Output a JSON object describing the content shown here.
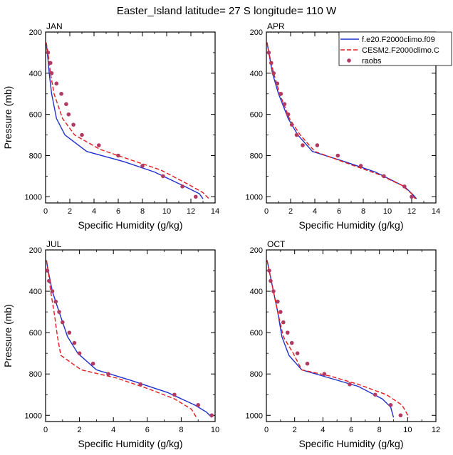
{
  "figure": {
    "title": "Easter_Island  latitude= 27 S longitude= 110 W"
  },
  "legend": {
    "placement": "top-right of APR panel",
    "entries": [
      {
        "label": "f.e20.F2000climo.f09",
        "style": "solid",
        "color": "#1f2fcc"
      },
      {
        "label": "CESM2.F2000climo.C",
        "style": "dashed",
        "color": "#e31a1c"
      },
      {
        "label": "raobs",
        "style": "marker",
        "color": "#b03a62"
      }
    ]
  },
  "chart_data": [
    {
      "type": "line",
      "panel": "JAN",
      "xlabel": "Specific Humidity (g/kg)",
      "ylabel": "Pressure (mb)",
      "xlim": [
        0,
        14
      ],
      "ylim": [
        1030,
        200
      ],
      "y_inverted": true,
      "xticks": [
        "0",
        "2",
        "4",
        "6",
        "8",
        "10",
        "12",
        "14"
      ],
      "yticks": [
        "200",
        "400",
        "600",
        "800",
        "1000"
      ],
      "series": [
        {
          "name": "f.e20.F2000climo.f09",
          "color": "#1f2fcc",
          "style": "solid",
          "points": [
            [
              0.05,
              250
            ],
            [
              0.15,
              300
            ],
            [
              0.3,
              400
            ],
            [
              0.5,
              500
            ],
            [
              0.9,
              620
            ],
            [
              1.6,
              700
            ],
            [
              3.4,
              780
            ],
            [
              6.5,
              830
            ],
            [
              9.0,
              880
            ],
            [
              11.5,
              950
            ],
            [
              12.7,
              985
            ],
            [
              13.0,
              1010
            ]
          ]
        },
        {
          "name": "CESM2.F2000climo.C",
          "color": "#e31a1c",
          "style": "dashed",
          "points": [
            [
              0.05,
              250
            ],
            [
              0.2,
              300
            ],
            [
              0.4,
              400
            ],
            [
              0.7,
              500
            ],
            [
              1.4,
              620
            ],
            [
              2.4,
              700
            ],
            [
              4.5,
              770
            ],
            [
              7.0,
              820
            ],
            [
              9.5,
              870
            ],
            [
              11.8,
              940
            ],
            [
              13.0,
              980
            ],
            [
              13.5,
              1010
            ]
          ]
        },
        {
          "name": "raobs",
          "color": "#b03a62",
          "style": "marker",
          "points": [
            [
              0.2,
              300
            ],
            [
              0.4,
              350
            ],
            [
              0.5,
              400
            ],
            [
              0.9,
              450
            ],
            [
              1.3,
              500
            ],
            [
              1.7,
              550
            ],
            [
              1.9,
              600
            ],
            [
              2.3,
              650
            ],
            [
              3.0,
              700
            ],
            [
              4.4,
              750
            ],
            [
              6.0,
              800
            ],
            [
              8.0,
              850
            ],
            [
              9.7,
              900
            ],
            [
              11.3,
              950
            ],
            [
              12.4,
              1000
            ]
          ]
        }
      ]
    },
    {
      "type": "line",
      "panel": "APR",
      "xlabel": "Specific Humidity (g/kg)",
      "ylabel": "",
      "xlim": [
        0,
        14
      ],
      "ylim": [
        1030,
        200
      ],
      "y_inverted": true,
      "xticks": [
        "0",
        "2",
        "4",
        "6",
        "8",
        "10",
        "12",
        "14"
      ],
      "yticks": [
        "200",
        "400",
        "600",
        "800",
        "1000"
      ],
      "series": [
        {
          "name": "f.e20.F2000climo.f09",
          "color": "#1f2fcc",
          "style": "solid",
          "points": [
            [
              0.05,
              250
            ],
            [
              0.2,
              300
            ],
            [
              0.5,
              400
            ],
            [
              1.0,
              500
            ],
            [
              1.8,
              620
            ],
            [
              2.6,
              700
            ],
            [
              3.8,
              780
            ],
            [
              6.5,
              830
            ],
            [
              9.0,
              880
            ],
            [
              11.4,
              950
            ],
            [
              12.1,
              990
            ],
            [
              12.4,
              1010
            ]
          ]
        },
        {
          "name": "CESM2.F2000climo.C",
          "color": "#e31a1c",
          "style": "dashed",
          "points": [
            [
              0.05,
              250
            ],
            [
              0.2,
              300
            ],
            [
              0.6,
              400
            ],
            [
              1.1,
              500
            ],
            [
              1.9,
              620
            ],
            [
              2.8,
              700
            ],
            [
              4.0,
              780
            ],
            [
              6.8,
              840
            ],
            [
              9.2,
              890
            ],
            [
              11.2,
              945
            ],
            [
              12.0,
              985
            ],
            [
              12.3,
              1010
            ]
          ]
        },
        {
          "name": "raobs",
          "color": "#b03a62",
          "style": "marker",
          "points": [
            [
              0.2,
              300
            ],
            [
              0.4,
              350
            ],
            [
              0.6,
              400
            ],
            [
              0.9,
              450
            ],
            [
              1.2,
              500
            ],
            [
              1.5,
              550
            ],
            [
              1.8,
              600
            ],
            [
              2.1,
              650
            ],
            [
              2.5,
              700
            ],
            [
              3.0,
              750
            ],
            [
              4.2,
              750
            ],
            [
              5.9,
              800
            ],
            [
              7.8,
              850
            ],
            [
              9.7,
              900
            ],
            [
              11.4,
              950
            ],
            [
              12.0,
              1000
            ]
          ]
        }
      ]
    },
    {
      "type": "line",
      "panel": "JUL",
      "xlabel": "Specific Humidity (g/kg)",
      "ylabel": "Pressure (mb)",
      "xlim": [
        0,
        10
      ],
      "ylim": [
        1030,
        200
      ],
      "y_inverted": true,
      "xticks": [
        "0",
        "2",
        "4",
        "6",
        "8",
        "10"
      ],
      "yticks": [
        "200",
        "400",
        "600",
        "800",
        "1000"
      ],
      "series": [
        {
          "name": "f.e20.F2000climo.f09",
          "color": "#1f2fcc",
          "style": "solid",
          "points": [
            [
              0.05,
              250
            ],
            [
              0.15,
              300
            ],
            [
              0.4,
              400
            ],
            [
              0.8,
              500
            ],
            [
              1.3,
              620
            ],
            [
              1.9,
              700
            ],
            [
              3.0,
              780
            ],
            [
              5.0,
              830
            ],
            [
              7.2,
              890
            ],
            [
              8.8,
              950
            ],
            [
              9.5,
              985
            ],
            [
              9.8,
              1010
            ]
          ]
        },
        {
          "name": "CESM2.F2000climo.C",
          "color": "#e31a1c",
          "style": "dashed",
          "points": [
            [
              0.05,
              250
            ],
            [
              0.15,
              300
            ],
            [
              0.3,
              400
            ],
            [
              0.5,
              500
            ],
            [
              0.7,
              620
            ],
            [
              0.9,
              710
            ],
            [
              2.1,
              780
            ],
            [
              4.2,
              820
            ],
            [
              6.0,
              870
            ],
            [
              7.6,
              920
            ],
            [
              8.6,
              970
            ],
            [
              8.9,
              1010
            ]
          ]
        },
        {
          "name": "raobs",
          "color": "#b03a62",
          "style": "marker",
          "points": [
            [
              0.1,
              300
            ],
            [
              0.2,
              350
            ],
            [
              0.4,
              400
            ],
            [
              0.6,
              450
            ],
            [
              0.8,
              500
            ],
            [
              1.0,
              550
            ],
            [
              1.4,
              600
            ],
            [
              1.7,
              650
            ],
            [
              2.0,
              700
            ],
            [
              2.8,
              750
            ],
            [
              3.7,
              800
            ],
            [
              5.6,
              850
            ],
            [
              7.6,
              900
            ],
            [
              9.0,
              950
            ],
            [
              9.8,
              1000
            ]
          ]
        }
      ]
    },
    {
      "type": "line",
      "panel": "OCT",
      "xlabel": "Specific Humidity (g/kg)",
      "ylabel": "",
      "xlim": [
        0,
        12
      ],
      "ylim": [
        1030,
        200
      ],
      "y_inverted": true,
      "xticks": [
        "0",
        "2",
        "4",
        "6",
        "8",
        "10",
        "12"
      ],
      "yticks": [
        "200",
        "400",
        "600",
        "800",
        "1000"
      ],
      "series": [
        {
          "name": "f.e20.F2000climo.f09",
          "color": "#1f2fcc",
          "style": "solid",
          "points": [
            [
              0.05,
              250
            ],
            [
              0.2,
              300
            ],
            [
              0.5,
              400
            ],
            [
              0.8,
              500
            ],
            [
              1.1,
              620
            ],
            [
              1.6,
              710
            ],
            [
              2.5,
              780
            ],
            [
              4.5,
              820
            ],
            [
              6.5,
              860
            ],
            [
              8.2,
              920
            ],
            [
              8.8,
              960
            ],
            [
              9.0,
              1010
            ]
          ]
        },
        {
          "name": "CESM2.F2000climo.C",
          "color": "#e31a1c",
          "style": "dashed",
          "points": [
            [
              0.05,
              250
            ],
            [
              0.2,
              300
            ],
            [
              0.5,
              400
            ],
            [
              0.8,
              500
            ],
            [
              1.2,
              620
            ],
            [
              1.9,
              700
            ],
            [
              2.5,
              780
            ],
            [
              4.5,
              810
            ],
            [
              6.5,
              850
            ],
            [
              8.5,
              900
            ],
            [
              9.6,
              950
            ],
            [
              10.1,
              1010
            ]
          ]
        },
        {
          "name": "raobs",
          "color": "#b03a62",
          "style": "marker",
          "points": [
            [
              0.2,
              300
            ],
            [
              0.3,
              350
            ],
            [
              0.5,
              400
            ],
            [
              0.8,
              450
            ],
            [
              1.0,
              500
            ],
            [
              1.2,
              550
            ],
            [
              1.5,
              600
            ],
            [
              1.8,
              650
            ],
            [
              2.2,
              700
            ],
            [
              2.9,
              750
            ],
            [
              4.1,
              800
            ],
            [
              5.9,
              850
            ],
            [
              7.7,
              900
            ],
            [
              8.8,
              950
            ],
            [
              9.5,
              1000
            ]
          ]
        }
      ]
    }
  ]
}
